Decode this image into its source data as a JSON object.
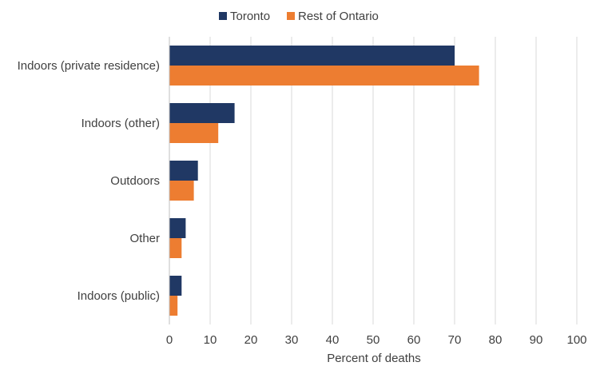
{
  "chart_data": {
    "type": "bar",
    "orientation": "horizontal",
    "title": "",
    "xlabel": "Percent of deaths",
    "ylabel": "",
    "xlim": [
      0,
      100
    ],
    "x_ticks": [
      0,
      10,
      20,
      30,
      40,
      50,
      60,
      70,
      80,
      90,
      100
    ],
    "grid": "vertical",
    "legend_position": "top-center",
    "categories": [
      "Indoors (private residence)",
      "Indoors (other)",
      "Outdoors",
      "Other",
      "Indoors (public)"
    ],
    "series": [
      {
        "name": "Toronto",
        "color": "#203864",
        "values": [
          70,
          16,
          7,
          4,
          3
        ]
      },
      {
        "name": "Rest of Ontario",
        "color": "#ED7D31",
        "values": [
          76,
          12,
          6,
          3,
          2
        ]
      }
    ]
  }
}
